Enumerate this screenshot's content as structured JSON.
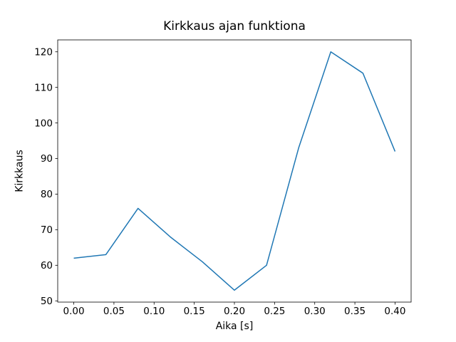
{
  "figure": {
    "background": "#ffffff",
    "text_color": "#000000"
  },
  "chart_data": {
    "type": "line",
    "title": "Kirkkaus ajan funktiona",
    "xlabel": "Aika [s]",
    "ylabel": "Kirkkaus",
    "x": [
      0.0,
      0.04,
      0.08,
      0.12,
      0.16,
      0.2,
      0.24,
      0.28,
      0.32,
      0.36,
      0.4
    ],
    "y": [
      62,
      63,
      76,
      68,
      61,
      53,
      60,
      93,
      120,
      114,
      92
    ],
    "series_name": "Kirkkaus",
    "line_color": "#1f77b4",
    "line_width": 1.5,
    "marker": "none",
    "xticks": [
      0.0,
      0.05,
      0.1,
      0.15,
      0.2,
      0.25,
      0.3,
      0.35,
      0.4
    ],
    "xtick_labels": [
      "0.00",
      "0.05",
      "0.10",
      "0.15",
      "0.20",
      "0.25",
      "0.30",
      "0.35",
      "0.40"
    ],
    "yticks": [
      50,
      60,
      70,
      80,
      90,
      100,
      110,
      120
    ],
    "ytick_labels": [
      "50",
      "60",
      "70",
      "80",
      "90",
      "100",
      "110",
      "120"
    ],
    "xlim": [
      -0.02,
      0.42
    ],
    "ylim": [
      49.65,
      123.35
    ],
    "grid": false,
    "legend_position": "none",
    "spine_color": "#000000"
  }
}
